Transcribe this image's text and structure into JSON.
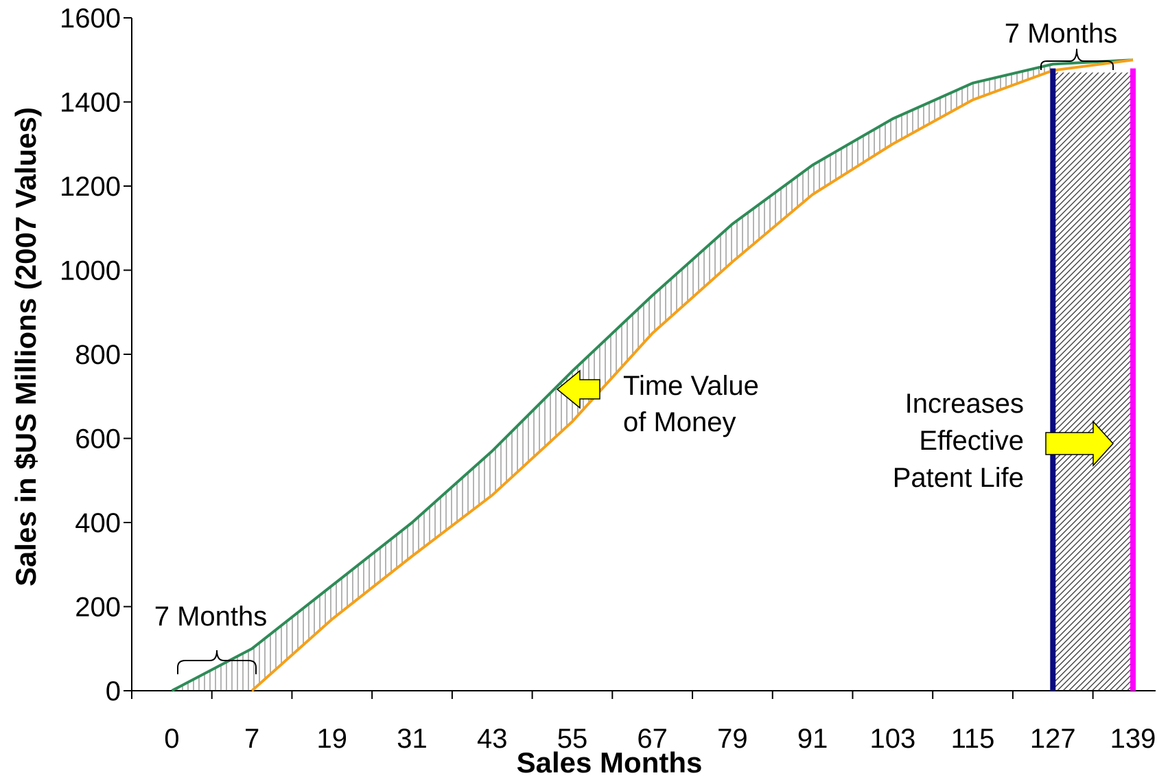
{
  "chart_data": {
    "type": "line",
    "xlabel": "Sales Months",
    "ylabel": "Sales  in $US Millions (2007 Values)",
    "ylim": [
      0,
      1600
    ],
    "yticks": [
      0,
      200,
      400,
      600,
      800,
      1000,
      1200,
      1400,
      1600
    ],
    "x_tick_labels": [
      "0",
      "7",
      "19",
      "31",
      "43",
      "55",
      "67",
      "79",
      "91",
      "103",
      "115",
      "127",
      "139"
    ],
    "grid": false,
    "legend": "none",
    "series": [
      {
        "color": "#2e8b57",
        "values": [
          0,
          100,
          250,
          400,
          570,
          760,
          940,
          1110,
          1250,
          1360,
          1445,
          1490,
          1500
        ]
      },
      {
        "color": "#f5a01a",
        "values": [
          null,
          0,
          170,
          320,
          465,
          640,
          850,
          1020,
          1180,
          1300,
          1405,
          1475,
          1500
        ]
      }
    ],
    "annotations": [
      {
        "text": "7 Months",
        "position": "lower-left"
      },
      {
        "text": "7 Months",
        "position": "top-right"
      },
      {
        "text": "Time Value",
        "position": "middle"
      },
      {
        "text": "of Money",
        "position": "middle"
      },
      {
        "text": "Increases",
        "position": "right"
      },
      {
        "text": "Effective",
        "position": "right"
      },
      {
        "text": "Patent Life",
        "position": "right"
      }
    ],
    "markers": [
      {
        "color": "#0a0a80"
      },
      {
        "color": "#ff00ff"
      }
    ],
    "arrow_color": "#ffff00"
  }
}
